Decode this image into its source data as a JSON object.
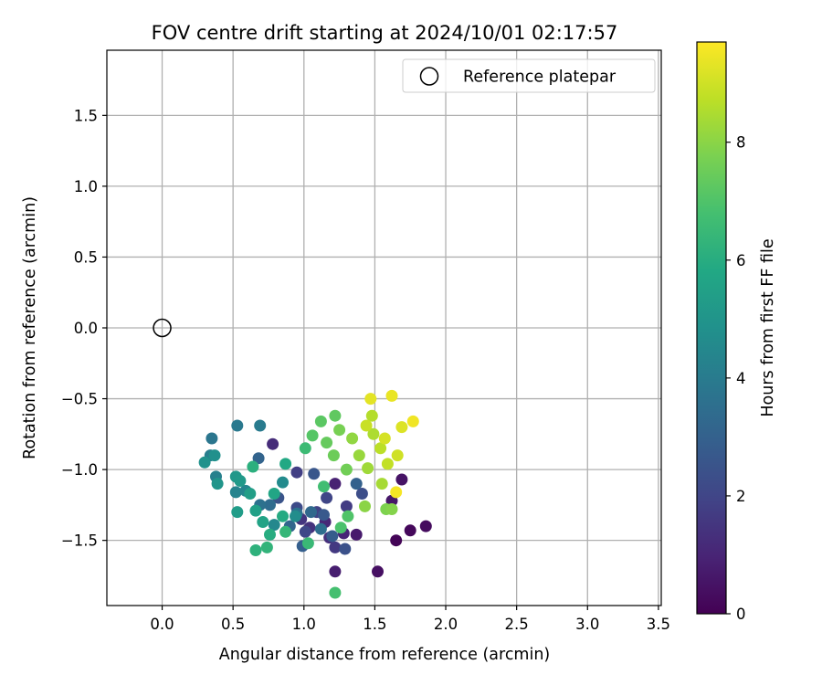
{
  "chart_data": {
    "type": "scatter",
    "title": "FOV centre drift starting at 2024/10/01 02:17:57",
    "xlabel": "Angular distance from reference (arcmin)",
    "ylabel": "Rotation from reference (arcmin)",
    "xlim": [
      -0.39,
      3.52
    ],
    "ylim": [
      -1.96,
      1.96
    ],
    "xticks": [
      0.0,
      0.5,
      1.0,
      1.5,
      2.0,
      2.5,
      3.0,
      3.5
    ],
    "xtick_labels": [
      "0.0",
      "0.5",
      "1.0",
      "1.5",
      "2.0",
      "2.5",
      "3.0",
      "3.5"
    ],
    "yticks": [
      -1.5,
      -1.0,
      -0.5,
      0.0,
      0.5,
      1.0,
      1.5
    ],
    "ytick_labels": [
      "−1.5",
      "−1.0",
      "−0.5",
      "0.0",
      "0.5",
      "1.0",
      "1.5"
    ],
    "grid": true,
    "legend": {
      "placement": "top-right",
      "entries": [
        {
          "label": "Reference platepar",
          "marker": "open-circle"
        }
      ]
    },
    "colorbar": {
      "label": "Hours from first FF file",
      "colormap": "viridis",
      "range": [
        0,
        9.7
      ],
      "ticks": [
        0,
        2,
        4,
        6,
        8
      ],
      "tick_labels": [
        "0",
        "2",
        "4",
        "6",
        "8"
      ]
    },
    "reference_point": {
      "x": 0.0,
      "y": 0.0
    },
    "points": [
      [
        1.65,
        -1.5,
        0.1
      ],
      [
        1.75,
        -1.43,
        0.2
      ],
      [
        1.86,
        -1.4,
        0.3
      ],
      [
        1.52,
        -1.72,
        0.4
      ],
      [
        1.69,
        -1.07,
        0.5
      ],
      [
        1.62,
        -1.22,
        0.6
      ],
      [
        1.37,
        -1.46,
        0.7
      ],
      [
        1.22,
        -1.72,
        0.8
      ],
      [
        1.22,
        -1.1,
        0.9
      ],
      [
        1.28,
        -1.45,
        1.0
      ],
      [
        1.15,
        -1.37,
        1.1
      ],
      [
        0.78,
        -0.82,
        1.2
      ],
      [
        1.18,
        -1.48,
        1.3
      ],
      [
        1.04,
        -1.41,
        1.4
      ],
      [
        0.98,
        -1.35,
        1.5
      ],
      [
        1.22,
        -1.55,
        1.6
      ],
      [
        1.3,
        -1.26,
        1.7
      ],
      [
        0.95,
        -1.02,
        1.8
      ],
      [
        1.09,
        -1.3,
        1.9
      ],
      [
        1.16,
        -1.2,
        2.0
      ],
      [
        1.01,
        -1.44,
        2.1
      ],
      [
        0.95,
        -1.27,
        2.2
      ],
      [
        1.41,
        -1.17,
        2.3
      ],
      [
        1.29,
        -1.56,
        2.4
      ],
      [
        0.82,
        -1.2,
        2.5
      ],
      [
        1.07,
        -1.03,
        2.6
      ],
      [
        1.14,
        -1.32,
        2.7
      ],
      [
        1.2,
        -1.47,
        2.8
      ],
      [
        0.99,
        -1.54,
        2.9
      ],
      [
        1.37,
        -1.1,
        3.0
      ],
      [
        0.68,
        -0.92,
        3.1
      ],
      [
        0.9,
        -1.4,
        3.2
      ],
      [
        1.05,
        -1.3,
        3.3
      ],
      [
        0.76,
        -1.25,
        3.4
      ],
      [
        1.12,
        -1.42,
        3.5
      ],
      [
        0.69,
        -1.25,
        3.6
      ],
      [
        0.95,
        -1.31,
        3.7
      ],
      [
        0.35,
        -0.78,
        3.8
      ],
      [
        0.53,
        -0.69,
        3.9
      ],
      [
        0.69,
        -0.69,
        4.0
      ],
      [
        0.34,
        -0.9,
        4.1
      ],
      [
        0.38,
        -1.05,
        4.2
      ],
      [
        0.52,
        -1.16,
        4.3
      ],
      [
        0.59,
        -1.15,
        4.4
      ],
      [
        0.79,
        -1.39,
        4.5
      ],
      [
        0.85,
        -1.09,
        4.6
      ],
      [
        0.94,
        -1.33,
        4.7
      ],
      [
        0.37,
        -0.9,
        4.8
      ],
      [
        0.3,
        -0.95,
        4.9
      ],
      [
        0.39,
        -1.1,
        5.0
      ],
      [
        0.52,
        -1.05,
        5.1
      ],
      [
        0.55,
        -1.08,
        5.2
      ],
      [
        0.53,
        -1.3,
        5.3
      ],
      [
        0.62,
        -1.17,
        5.4
      ],
      [
        0.66,
        -1.29,
        5.5
      ],
      [
        0.71,
        -1.37,
        5.6
      ],
      [
        0.79,
        -1.17,
        5.7
      ],
      [
        0.87,
        -0.96,
        5.8
      ],
      [
        0.85,
        -1.33,
        5.9
      ],
      [
        0.76,
        -1.46,
        6.0
      ],
      [
        0.64,
        -0.98,
        6.1
      ],
      [
        0.66,
        -1.57,
        6.2
      ],
      [
        0.74,
        -1.55,
        6.3
      ],
      [
        0.87,
        -1.44,
        6.4
      ],
      [
        1.03,
        -1.52,
        6.5
      ],
      [
        1.01,
        -0.85,
        6.6
      ],
      [
        1.14,
        -1.12,
        6.7
      ],
      [
        1.22,
        -1.87,
        6.8
      ],
      [
        1.26,
        -1.41,
        6.9
      ],
      [
        1.31,
        -1.33,
        7.0
      ],
      [
        1.06,
        -0.76,
        7.1
      ],
      [
        1.12,
        -0.66,
        7.2
      ],
      [
        1.22,
        -0.62,
        7.3
      ],
      [
        1.16,
        -0.81,
        7.4
      ],
      [
        1.21,
        -0.9,
        7.5
      ],
      [
        1.3,
        -1.0,
        7.6
      ],
      [
        1.25,
        -0.72,
        7.7
      ],
      [
        1.58,
        -1.28,
        7.8
      ],
      [
        1.62,
        -1.28,
        7.9
      ],
      [
        1.43,
        -1.26,
        8.0
      ],
      [
        1.34,
        -0.78,
        8.1
      ],
      [
        1.39,
        -0.9,
        8.2
      ],
      [
        1.45,
        -0.99,
        8.3
      ],
      [
        1.55,
        -1.1,
        8.4
      ],
      [
        1.49,
        -0.75,
        8.5
      ],
      [
        1.48,
        -0.62,
        8.6
      ],
      [
        1.54,
        -0.85,
        8.7
      ],
      [
        1.59,
        -0.96,
        8.8
      ],
      [
        1.44,
        -0.69,
        8.9
      ],
      [
        1.66,
        -0.9,
        9.0
      ],
      [
        1.57,
        -0.78,
        9.1
      ],
      [
        1.69,
        -0.7,
        9.2
      ],
      [
        1.47,
        -0.5,
        9.3
      ],
      [
        1.62,
        -0.48,
        9.4
      ],
      [
        1.77,
        -0.66,
        9.5
      ],
      [
        1.65,
        -1.16,
        9.6
      ]
    ]
  }
}
